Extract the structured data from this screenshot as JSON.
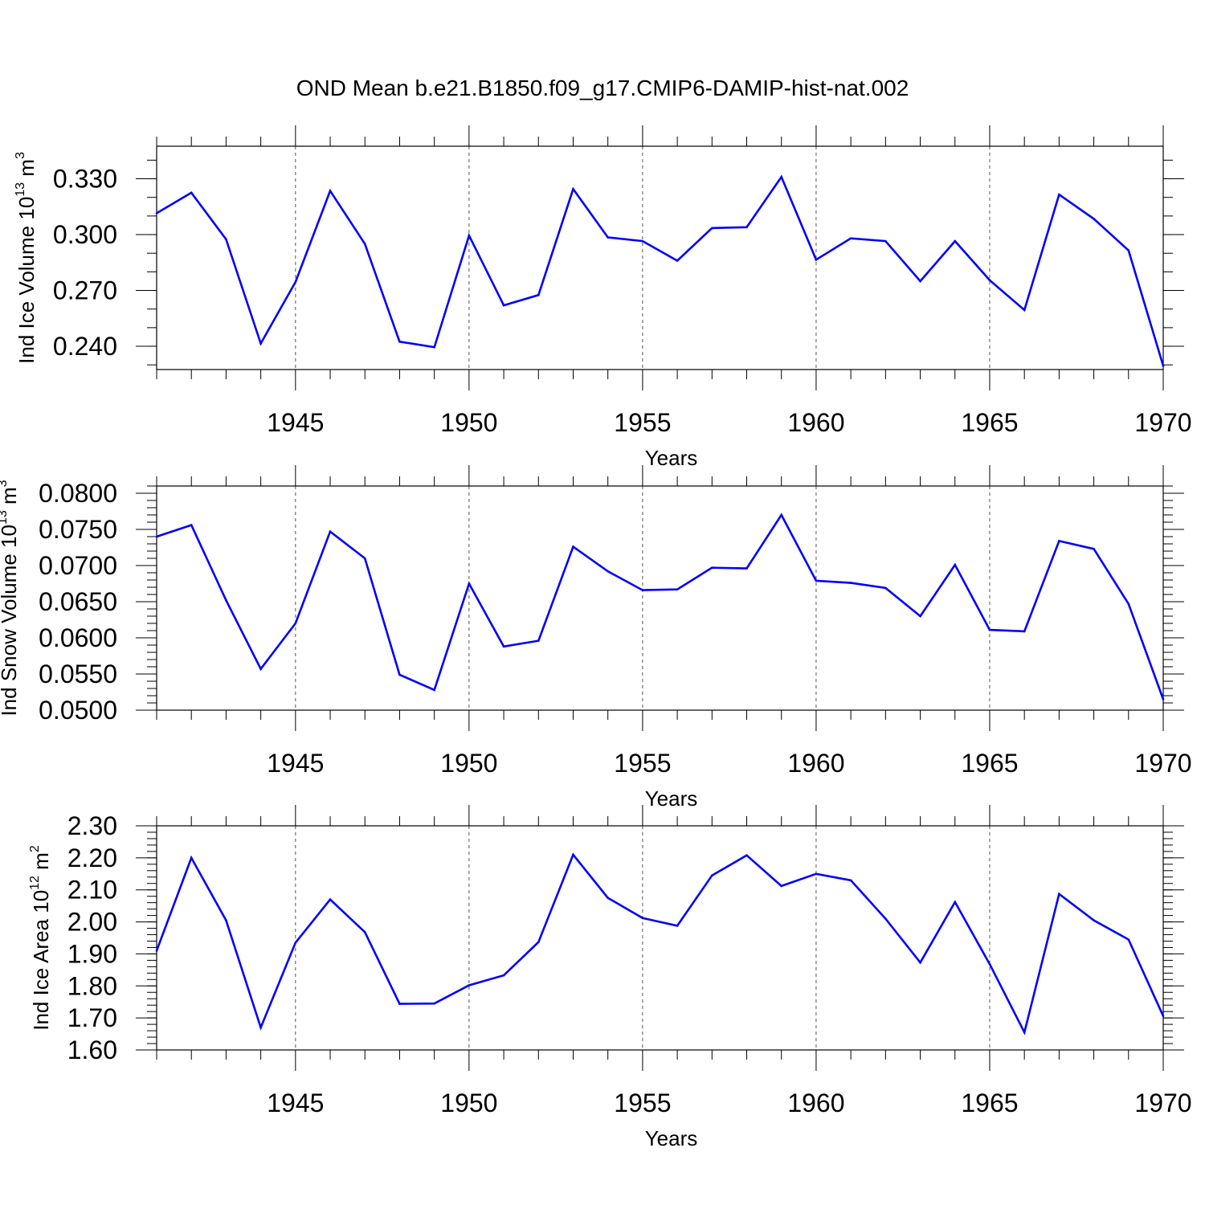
{
  "title": "OND Mean b.e21.B1850.f09_g17.CMIP6-DAMIP-hist-nat.002",
  "colors": {
    "line": "#0000ff",
    "axis": "#000000",
    "grid": "#555555"
  },
  "chart_data": [
    {
      "type": "line",
      "title": "OND Mean b.e21.B1850.f09_g17.CMIP6-DAMIP-hist-nat.002",
      "xlabel": "Years",
      "ylabel": "Ind Ice Volume 10",
      "ylabel_exp": "13",
      "ylabel_unit": " m",
      "ylabel_unit_exp": "3",
      "xlim": [
        1941,
        1970
      ],
      "ylim": [
        0.2275,
        0.3475
      ],
      "xticks": [
        1945,
        1950,
        1955,
        1960,
        1965,
        1970
      ],
      "xtick_labels": [
        "1945",
        "1950",
        "1955",
        "1960",
        "1965",
        "1970"
      ],
      "yticks": [
        0.24,
        0.27,
        0.3,
        0.33
      ],
      "ytick_labels": [
        "0.240",
        "0.270",
        "0.300",
        "0.330"
      ],
      "y_minor_step": 0.01,
      "x": [
        1941,
        1942,
        1943,
        1944,
        1945,
        1946,
        1947,
        1948,
        1949,
        1950,
        1951,
        1952,
        1953,
        1954,
        1955,
        1956,
        1957,
        1958,
        1959,
        1960,
        1961,
        1962,
        1963,
        1964,
        1965,
        1966,
        1967,
        1968,
        1969,
        1970
      ],
      "values": [
        0.3115,
        0.3225,
        0.2975,
        0.2415,
        0.2745,
        0.3235,
        0.295,
        0.2425,
        0.2395,
        0.2995,
        0.262,
        0.2675,
        0.3245,
        0.2985,
        0.2965,
        0.286,
        0.3035,
        0.304,
        0.331,
        0.2865,
        0.298,
        0.2965,
        0.275,
        0.2965,
        0.2755,
        0.2595,
        0.3215,
        0.3085,
        0.2915,
        0.2295
      ],
      "grid": "dashed vertical at major x ticks",
      "legend": "none"
    },
    {
      "type": "line",
      "xlabel": "Years",
      "ylabel": "Ind Snow Volume 10",
      "ylabel_exp": "13",
      "ylabel_unit": " m",
      "ylabel_unit_exp": "3",
      "xlim": [
        1941,
        1970
      ],
      "ylim": [
        0.05,
        0.081
      ],
      "xticks": [
        1945,
        1950,
        1955,
        1960,
        1965,
        1970
      ],
      "xtick_labels": [
        "1945",
        "1950",
        "1955",
        "1960",
        "1965",
        "1970"
      ],
      "yticks": [
        0.05,
        0.055,
        0.06,
        0.065,
        0.07,
        0.075,
        0.08
      ],
      "ytick_labels": [
        "0.0500",
        "0.0550",
        "0.0600",
        "0.0650",
        "0.0700",
        "0.0750",
        "0.0800"
      ],
      "y_minor_step": 0.001,
      "x": [
        1941,
        1942,
        1943,
        1944,
        1945,
        1946,
        1947,
        1948,
        1949,
        1950,
        1951,
        1952,
        1953,
        1954,
        1955,
        1956,
        1957,
        1958,
        1959,
        1960,
        1961,
        1962,
        1963,
        1964,
        1965,
        1966,
        1967,
        1968,
        1969,
        1970
      ],
      "values": [
        0.074,
        0.0756,
        0.0652,
        0.0557,
        0.062,
        0.0747,
        0.071,
        0.0549,
        0.0528,
        0.0675,
        0.0588,
        0.0596,
        0.0726,
        0.0692,
        0.0666,
        0.0667,
        0.0697,
        0.0696,
        0.077,
        0.0679,
        0.0676,
        0.0669,
        0.063,
        0.0701,
        0.0611,
        0.0609,
        0.0734,
        0.0723,
        0.0647,
        0.0515
      ],
      "grid": "dashed vertical at major x ticks",
      "legend": "none"
    },
    {
      "type": "line",
      "xlabel": "Years",
      "ylabel": "Ind Ice Area 10",
      "ylabel_exp": "12",
      "ylabel_unit": " m",
      "ylabel_unit_exp": "2",
      "xlim": [
        1941,
        1970
      ],
      "ylim": [
        1.6,
        2.3
      ],
      "xticks": [
        1945,
        1950,
        1955,
        1960,
        1965,
        1970
      ],
      "xtick_labels": [
        "1945",
        "1950",
        "1955",
        "1960",
        "1965",
        "1970"
      ],
      "yticks": [
        1.6,
        1.7,
        1.8,
        1.9,
        2.0,
        2.1,
        2.2,
        2.3
      ],
      "ytick_labels": [
        "1.60",
        "1.70",
        "1.80",
        "1.90",
        "2.00",
        "2.10",
        "2.20",
        "2.30"
      ],
      "y_minor_step": 0.02,
      "x": [
        1941,
        1942,
        1943,
        1944,
        1945,
        1946,
        1947,
        1948,
        1949,
        1950,
        1951,
        1952,
        1953,
        1954,
        1955,
        1956,
        1957,
        1958,
        1959,
        1960,
        1961,
        1962,
        1963,
        1964,
        1965,
        1966,
        1967,
        1968,
        1969,
        1970
      ],
      "values": [
        1.91,
        2.2,
        2.005,
        1.67,
        1.935,
        2.07,
        1.968,
        1.744,
        1.745,
        1.802,
        1.833,
        1.937,
        2.21,
        2.075,
        2.012,
        1.988,
        2.145,
        2.208,
        2.112,
        2.15,
        2.13,
        2.01,
        1.873,
        2.062,
        1.868,
        1.655,
        2.087,
        2.005,
        1.945,
        1.706
      ],
      "grid": "dashed vertical at major x ticks",
      "legend": "none"
    }
  ]
}
